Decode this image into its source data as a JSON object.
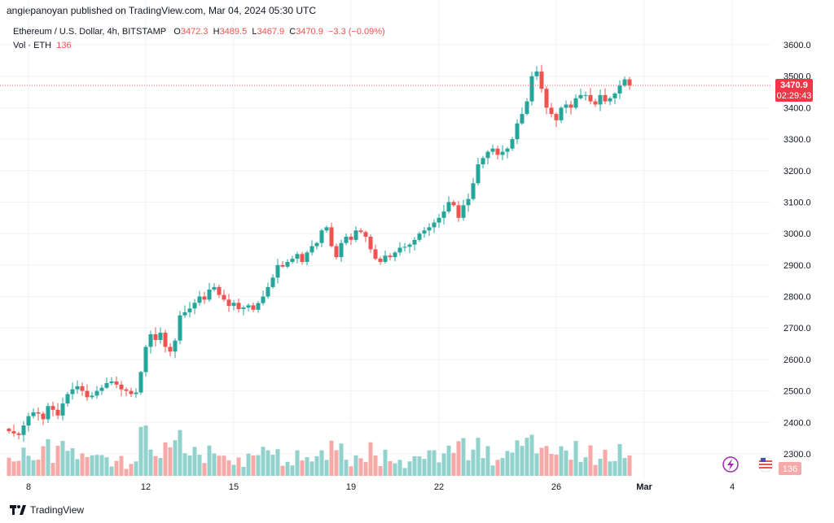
{
  "header": {
    "published": "angiepanoyan published on TradingView.com, Mar 04, 2024 05:30 UTC"
  },
  "legend": {
    "symbol": "Ethereum / U.S. Dollar, 4h, BITSTAMP",
    "open_label": "O",
    "open": "3472.3",
    "high_label": "H",
    "high": "3489.5",
    "low_label": "L",
    "low": "3467.9",
    "close_label": "C",
    "close": "3470.9",
    "change": "−3.3 (−0.09%)",
    "volume_label": "Vol · ETH",
    "volume": "136"
  },
  "price_tag": {
    "price": "3470.9",
    "countdown": "02:29:43"
  },
  "volume_tag": "136",
  "footer": {
    "brand": "TradingView"
  },
  "colors": {
    "up": "#26a69a",
    "down": "#ef5350",
    "up_vol": "#92d2cc",
    "down_vol": "#f7a9a7",
    "grid": "#f0f3fa",
    "text": "#131722"
  },
  "icons": {
    "watermark": "tradingview-logo-icon",
    "flag": "us-flag-icon",
    "event": "lightning-icon"
  },
  "chart_data": {
    "type": "candlestick",
    "title": "Ethereum / U.S. Dollar, 4h, BITSTAMP",
    "y_ticks": [
      "3600.0",
      "3500.0",
      "3400.0",
      "3300.0",
      "3200.0",
      "3100.0",
      "3000.0",
      "2900.0",
      "2800.0",
      "2700.0",
      "2600.0",
      "2500.0",
      "2400.0",
      "2300.0"
    ],
    "ylim": [
      2240,
      3660
    ],
    "x_ticks": [
      {
        "label": "8",
        "index": 4
      },
      {
        "label": "12",
        "index": 28
      },
      {
        "label": "15",
        "index": 46
      },
      {
        "label": "19",
        "index": 70
      },
      {
        "label": "22",
        "index": 88
      },
      {
        "label": "26",
        "index": 112
      },
      {
        "label": "Mar",
        "index": 130
      },
      {
        "label": "4",
        "index": 148
      }
    ],
    "last_price": 3470.9,
    "closes": [
      2372,
      2365,
      2360,
      2390,
      2420,
      2432,
      2428,
      2410,
      2452,
      2440,
      2422,
      2460,
      2490,
      2505,
      2515,
      2500,
      2480,
      2485,
      2500,
      2510,
      2525,
      2530,
      2520,
      2505,
      2500,
      2490,
      2495,
      2560,
      2640,
      2680,
      2662,
      2685,
      2640,
      2625,
      2660,
      2740,
      2750,
      2762,
      2780,
      2800,
      2790,
      2822,
      2830,
      2805,
      2790,
      2770,
      2780,
      2760,
      2765,
      2772,
      2758,
      2779,
      2800,
      2830,
      2860,
      2900,
      2895,
      2910,
      2920,
      2935,
      2910,
      2940,
      2960,
      2970,
      3010,
      3020,
      2960,
      2925,
      2970,
      2990,
      2980,
      3010,
      3005,
      2990,
      2950,
      2920,
      2910,
      2930,
      2925,
      2940,
      2955,
      2958,
      2965,
      2980,
      3000,
      3010,
      3020,
      3035,
      3050,
      3070,
      3100,
      3090,
      3050,
      3090,
      3110,
      3160,
      3220,
      3240,
      3260,
      3270,
      3250,
      3260,
      3270,
      3300,
      3350,
      3380,
      3420,
      3500,
      3515,
      3460,
      3400,
      3380,
      3360,
      3400,
      3410,
      3400,
      3430,
      3440,
      3440,
      3420,
      3410,
      3440,
      3420,
      3430,
      3445,
      3470,
      3490,
      3470.9
    ]
  }
}
